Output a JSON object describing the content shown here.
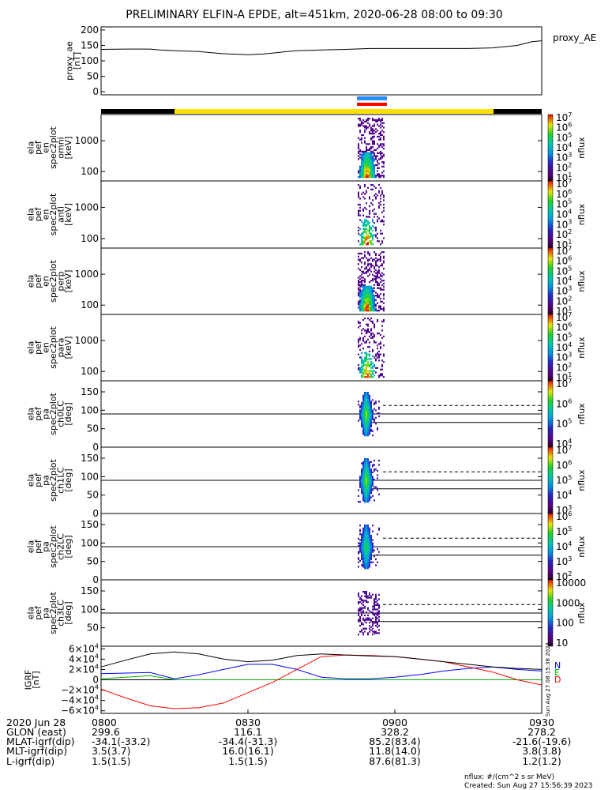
{
  "title": "PRELIMINARY ELFIN-A EPDE, alt=451km, 2020-06-28 08:00 to 09:30",
  "colors": {
    "axis": "#000000",
    "status_good": "#ffe000",
    "status_off": "#000000",
    "science_blue": "#2b8cff",
    "science_red": "#ff0000",
    "igrf_n": "#0000ff",
    "igrf_e": "#00b000",
    "igrf_d": "#ff0000",
    "igrf_total": "#000000"
  },
  "chart_data": [
    {
      "type": "line",
      "panel": "proxy_ae",
      "ylabel": "proxy_ae\n[nT]",
      "legend": "proxy_AE",
      "ylim": [
        -10,
        210
      ],
      "yticks": [
        "200",
        "150",
        "100",
        "50",
        "0"
      ],
      "x_minutes": [
        0,
        5,
        10,
        12,
        15,
        20,
        25,
        30,
        33,
        35,
        38,
        40,
        45,
        50,
        55,
        60,
        65,
        70,
        75,
        80,
        85,
        88,
        90
      ],
      "values": [
        137,
        138,
        138,
        135,
        133,
        130,
        123,
        120,
        122,
        125,
        130,
        133,
        135,
        137,
        140,
        140,
        140,
        140,
        140,
        142,
        150,
        162,
        165
      ]
    },
    {
      "type": "heatmap",
      "panel": "omni",
      "ylabel": "ela\npef\nen\nspec2plot\nomni\n[keV]",
      "yscale": "log",
      "ylim": [
        50,
        7000
      ],
      "yticks": [
        "1000",
        "100"
      ],
      "x_range_minutes": [
        48.0,
        52.0
      ],
      "colorbar": {
        "label": "nflux",
        "scale": "log",
        "ticks": [
          "10^7",
          "10^6",
          "10^5",
          "10^4",
          "10^3",
          "10^2",
          "10^1"
        ]
      }
    },
    {
      "type": "heatmap",
      "panel": "anti",
      "ylabel": "ela\npef\nen\nspec2plot\nanti\n[keV]",
      "yscale": "log",
      "ylim": [
        50,
        7000
      ],
      "yticks": [
        "1000",
        "100"
      ],
      "x_range_minutes": [
        48.0,
        52.0
      ],
      "colorbar": {
        "label": "nflux",
        "scale": "log",
        "ticks": [
          "10^7",
          "10^6",
          "10^5",
          "10^4",
          "10^3",
          "10^2",
          "10^1"
        ]
      }
    },
    {
      "type": "heatmap",
      "panel": "perp",
      "ylabel": "ela\npef\nen\nspec2plot\nperp\n[keV]",
      "yscale": "log",
      "ylim": [
        50,
        7000
      ],
      "yticks": [
        "1000",
        "100"
      ],
      "x_range_minutes": [
        48.0,
        52.0
      ],
      "colorbar": {
        "label": "nflux",
        "scale": "log",
        "ticks": [
          "10^7",
          "10^6",
          "10^5",
          "10^4",
          "10^3",
          "10^2",
          "10^1"
        ]
      }
    },
    {
      "type": "heatmap",
      "panel": "para",
      "ylabel": "ela\npef\nen\nspec2plot\npara\n[keV]",
      "yscale": "log",
      "ylim": [
        50,
        7000
      ],
      "yticks": [
        "1000",
        "100"
      ],
      "x_range_minutes": [
        48.0,
        52.0
      ],
      "colorbar": {
        "label": "nflux",
        "scale": "log",
        "ticks": [
          "10^7",
          "10^6",
          "10^5",
          "10^4",
          "10^3",
          "10^2",
          "10^1"
        ]
      }
    },
    {
      "type": "heatmap",
      "panel": "ch0LC",
      "ylabel": "ela\npef\npa\nspec2plot\nch0LC\n[deg]",
      "ylim": [
        0,
        180
      ],
      "yticks": [
        "150",
        "100",
        "50",
        "0"
      ],
      "reference_lines": {
        "solid": [
          90,
          67
        ],
        "dashed": [
          113
        ]
      },
      "colorbar": {
        "label": "nflux",
        "scale": "log",
        "ticks": [
          "10^7",
          "10^6",
          "10^5",
          "10^4"
        ]
      }
    },
    {
      "type": "heatmap",
      "panel": "ch1LC",
      "ylabel": "ela\npef\npa\nspec2plot\nch1LC\n[deg]",
      "ylim": [
        0,
        180
      ],
      "yticks": [
        "150",
        "100",
        "50",
        "0"
      ],
      "reference_lines": {
        "solid": [
          90,
          67
        ],
        "dashed": [
          113
        ]
      },
      "colorbar": {
        "label": "nflux",
        "scale": "log",
        "ticks": [
          "10^7",
          "10^6",
          "10^5",
          "10^4",
          "10^3"
        ]
      }
    },
    {
      "type": "heatmap",
      "panel": "ch2LC",
      "ylabel": "ela\npef\npa\nspec2plot\nch2LC\n[deg]",
      "ylim": [
        0,
        180
      ],
      "yticks": [
        "150",
        "100",
        "50",
        "0"
      ],
      "reference_lines": {
        "solid": [
          90,
          67
        ],
        "dashed": [
          113
        ]
      },
      "colorbar": {
        "label": "nflux",
        "scale": "log",
        "ticks": [
          "10^6",
          "10^5",
          "10^4",
          "10^3",
          "10^2"
        ]
      }
    },
    {
      "type": "heatmap",
      "panel": "ch3LC",
      "ylabel": "ela\npef\npa\nspec2plot\nch3LC\n[deg]",
      "ylim": [
        0,
        180
      ],
      "yticks": [
        "150",
        "100",
        "50"
      ],
      "reference_lines": {
        "solid": [
          90,
          67
        ],
        "dashed": [
          113
        ]
      },
      "colorbar": {
        "label": "nflux",
        "scale": "linear-log",
        "ticks": [
          "10000",
          "1000",
          "100",
          "10"
        ]
      }
    },
    {
      "type": "line",
      "panel": "igrf",
      "ylabel": "IGRF\n[nT]",
      "ylim": [
        -65000,
        65000
      ],
      "yticks": [
        "6×10^4",
        "4×10^4",
        "2×10^4",
        "0",
        "−2×10^4",
        "−4×10^4",
        "−6×10^4"
      ],
      "x_minutes": [
        0,
        5,
        10,
        15,
        20,
        25,
        30,
        35,
        40,
        45,
        50,
        55,
        60,
        65,
        70,
        75,
        80,
        85,
        90
      ],
      "series": [
        {
          "name": "N",
          "color": "#0000ff",
          "values": [
            12000,
            13000,
            14000,
            2000,
            10000,
            20000,
            30000,
            30000,
            20000,
            5000,
            2000,
            2000,
            5000,
            10000,
            17000,
            22000,
            25000,
            20000,
            17000
          ]
        },
        {
          "name": "E",
          "color": "#00b000",
          "values": [
            2000,
            5000,
            8000,
            0,
            0,
            0,
            0,
            0,
            0,
            0,
            0,
            0,
            0,
            0,
            0,
            0,
            0,
            0,
            0
          ]
        },
        {
          "name": "D",
          "color": "#ff0000",
          "values": [
            -18000,
            -35000,
            -50000,
            -56000,
            -54000,
            -45000,
            -25000,
            -5000,
            20000,
            45000,
            48000,
            47000,
            45000,
            40000,
            35000,
            25000,
            15000,
            0,
            -10000
          ]
        },
        {
          "name": "",
          "color": "#000000",
          "values": [
            25000,
            38000,
            50000,
            54000,
            50000,
            40000,
            35000,
            38000,
            47000,
            50000,
            48000,
            46000,
            45000,
            40000,
            35000,
            30000,
            25000,
            22000,
            20000
          ]
        }
      ]
    }
  ],
  "x_axis": {
    "row_labels": [
      "2020 Jun 28",
      "GLON (east)",
      "MLAT-igrf(dip)",
      "MLT-igrf(dip)",
      "L-igrf(dip)"
    ],
    "columns": [
      {
        "time": "0800",
        "glon": "299.6",
        "mlat": "-34.1(-33.2)",
        "mlt": "3.5(3.7)",
        "l": "1.5(1.5)"
      },
      {
        "time": "0830",
        "glon": "116.1",
        "mlat": "-34.4(-31.3)",
        "mlt": "16.0(16.1)",
        "l": "1.5(1.5)"
      },
      {
        "time": "0900",
        "glon": "328.2",
        "mlat": "85.2(83.4)",
        "mlt": "11.8(14.0)",
        "l": "87.6(81.3)"
      },
      {
        "time": "0930",
        "glon": "278.2",
        "mlat": "-21.6(-19.6)",
        "mlt": "3.8(3.8)",
        "l": "1.2(1.2)"
      }
    ]
  },
  "footer": {
    "units": "nflux: #/(cm^2 s sr MeV)",
    "created": "Created: Sun Aug 27 15:56:39 2023",
    "side_stamp": "Sun Aug 27 08:15:38 2023"
  }
}
